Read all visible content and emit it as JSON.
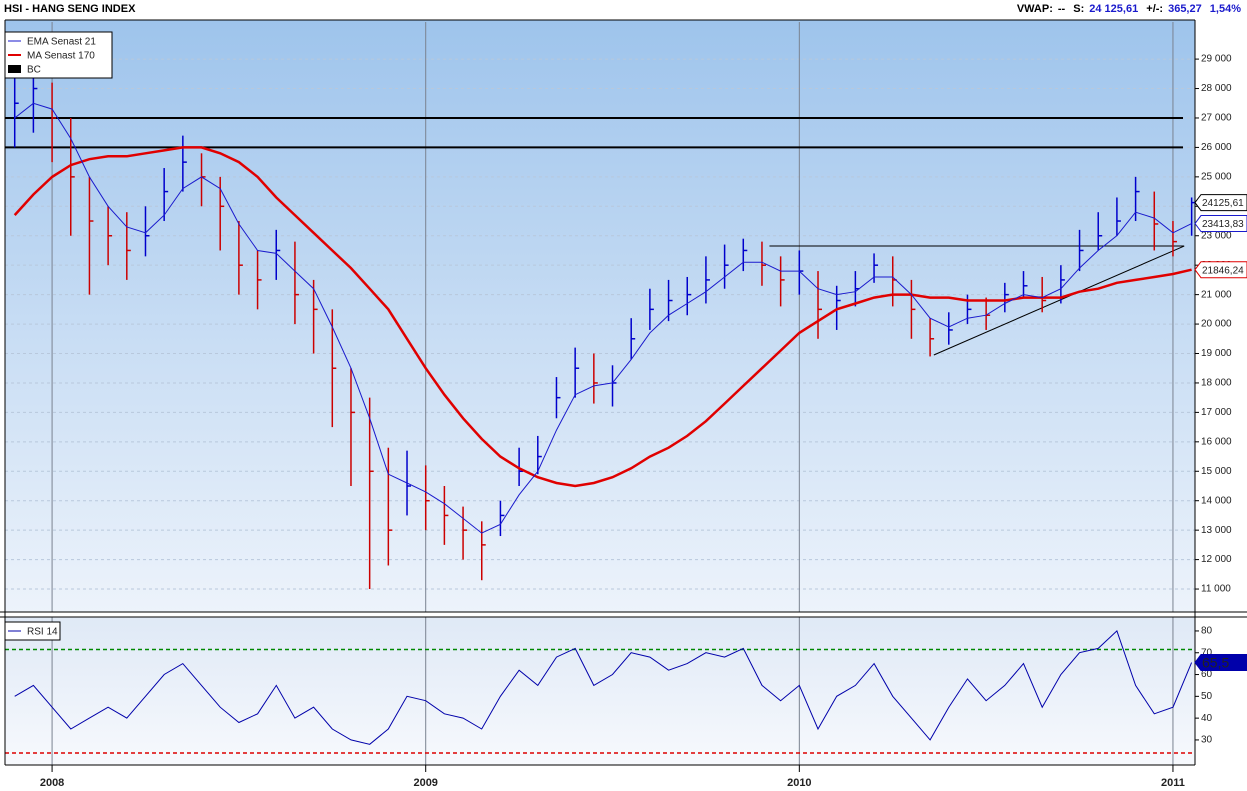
{
  "header": {
    "title": "HSI - HANG SENG INDEX",
    "vwap_label": "VWAP:",
    "vwap": "--",
    "s_label": "S:",
    "s": "24 125,61",
    "change_label": "+/-:",
    "change": "365,27",
    "change_pct": "1,54%"
  },
  "chart_data": [
    {
      "type": "ohlc",
      "x": [
        2007.9,
        2007.95,
        2008.0,
        2008.05,
        2008.1,
        2008.15,
        2008.2,
        2008.25,
        2008.3,
        2008.35,
        2008.4,
        2008.45,
        2008.5,
        2008.55,
        2008.6,
        2008.65,
        2008.7,
        2008.75,
        2008.8,
        2008.85,
        2008.9,
        2008.95,
        2009.0,
        2009.05,
        2009.1,
        2009.15,
        2009.2,
        2009.25,
        2009.3,
        2009.35,
        2009.4,
        2009.45,
        2009.5,
        2009.55,
        2009.6,
        2009.65,
        2009.7,
        2009.75,
        2009.8,
        2009.85,
        2009.9,
        2009.95,
        2010.0,
        2010.05,
        2010.1,
        2010.15,
        2010.2,
        2010.25,
        2010.3,
        2010.35,
        2010.4,
        2010.45,
        2010.5,
        2010.55,
        2010.6,
        2010.65,
        2010.7,
        2010.75,
        2010.8,
        2010.85,
        2010.9,
        2010.95,
        2011.0,
        2011.05
      ],
      "xlim": [
        2007.874,
        2011.059
      ],
      "xticks": [
        2008,
        2009,
        2010,
        2011
      ],
      "ylim": [
        10220,
        30260
      ],
      "yticks": [
        {
          "value": 11000,
          "label": "11 000"
        },
        {
          "value": 12000,
          "label": "12 000"
        },
        {
          "value": 13000,
          "label": "13 000"
        },
        {
          "value": 14000,
          "label": "14 000"
        },
        {
          "value": 15000,
          "label": "15 000"
        },
        {
          "value": 16000,
          "label": "16 000"
        },
        {
          "value": 17000,
          "label": "17 000"
        },
        {
          "value": 18000,
          "label": "18 000"
        },
        {
          "value": 19000,
          "label": "19 000"
        },
        {
          "value": 20000,
          "label": "20 000"
        },
        {
          "value": 21000,
          "label": "21 000"
        },
        {
          "value": 22000,
          "label": "22 000"
        },
        {
          "value": 23000,
          "label": "23 000"
        },
        {
          "value": 24000,
          "label": "24 000"
        },
        {
          "value": 25000,
          "label": "25 000"
        },
        {
          "value": 26000,
          "label": "26 000"
        },
        {
          "value": 27000,
          "label": "27 000"
        },
        {
          "value": 28000,
          "label": "28 000"
        },
        {
          "value": 29000,
          "label": "29 000"
        }
      ],
      "grid": true,
      "legend": "upper left",
      "up_color": "#0000cc",
      "down_color": "#cc0000",
      "series": [
        {
          "name": "EMA  Senast 21",
          "color": "#1a1acc",
          "values": [
            27000,
            27500,
            27300,
            26300,
            25000,
            24000,
            23300,
            23100,
            23700,
            24600,
            25000,
            24600,
            23400,
            22500,
            22400,
            21800,
            21200,
            19900,
            18500,
            16800,
            14900,
            14600,
            14300,
            13900,
            13400,
            12900,
            13200,
            14200,
            15000,
            16400,
            17600,
            17900,
            18000,
            18800,
            19700,
            20300,
            20700,
            21100,
            21600,
            22100,
            22100,
            21800,
            21800,
            21200,
            21000,
            21100,
            21600,
            21600,
            21000,
            20200,
            19900,
            20200,
            20300,
            20700,
            21000,
            20900,
            21200,
            21900,
            22500,
            23000,
            23800,
            23600,
            23100,
            23413.83
          ],
          "value_labels": [
            null,
            null,
            null,
            null,
            null,
            null,
            null,
            null,
            null,
            null,
            null,
            null,
            null,
            null,
            null,
            null,
            null,
            null,
            null,
            null,
            null,
            null,
            null,
            null,
            null,
            null,
            null,
            null,
            null,
            null,
            null,
            null,
            null,
            null,
            null,
            null,
            null,
            null,
            null,
            null,
            null,
            null,
            null,
            null,
            null,
            null,
            null,
            null,
            null,
            null,
            null,
            null,
            null,
            null,
            null,
            null,
            null,
            null,
            null,
            null,
            null,
            null,
            null,
            "23413,83"
          ]
        },
        {
          "name": "MA  Senast 170",
          "color": "#e00000",
          "values": [
            23700,
            24400,
            25000,
            25400,
            25600,
            25700,
            25700,
            25800,
            25900,
            26000,
            26000,
            25800,
            25500,
            25000,
            24300,
            23700,
            23100,
            22500,
            21900,
            21200,
            20500,
            19500,
            18500,
            17600,
            16800,
            16100,
            15500,
            15100,
            14800,
            14600,
            14500,
            14600,
            14800,
            15100,
            15500,
            15800,
            16200,
            16700,
            17300,
            17900,
            18500,
            19100,
            19700,
            20100,
            20500,
            20700,
            20900,
            21000,
            21000,
            20900,
            20900,
            20800,
            20800,
            20800,
            20900,
            20900,
            20900,
            21100,
            21200,
            21400,
            21500,
            21600,
            21700,
            21846.24
          ],
          "value_labels": [
            null,
            null,
            null,
            null,
            null,
            null,
            null,
            null,
            null,
            null,
            null,
            null,
            null,
            null,
            null,
            null,
            null,
            null,
            null,
            null,
            null,
            null,
            null,
            null,
            null,
            null,
            null,
            null,
            null,
            null,
            null,
            null,
            null,
            null,
            null,
            null,
            null,
            null,
            null,
            null,
            null,
            null,
            null,
            null,
            null,
            null,
            null,
            null,
            null,
            null,
            null,
            null,
            null,
            null,
            null,
            null,
            null,
            null,
            null,
            null,
            null,
            null,
            null,
            "21846,24"
          ]
        },
        {
          "name": "BC",
          "color": "#000000",
          "values": [
            27500,
            28000,
            27000,
            25000,
            23500,
            23000,
            22500,
            23000,
            24500,
            25500,
            25000,
            24000,
            22000,
            21500,
            22500,
            21000,
            20500,
            18500,
            17000,
            15000,
            13000,
            14500,
            14000,
            13500,
            13000,
            12500,
            13500,
            15000,
            15500,
            17500,
            18500,
            18000,
            18000,
            19500,
            20500,
            20800,
            21000,
            21500,
            22000,
            22500,
            22000,
            21500,
            21800,
            20500,
            20800,
            21200,
            22000,
            21500,
            20500,
            19500,
            19800,
            20500,
            20300,
            21000,
            21300,
            20800,
            21500,
            22500,
            23000,
            23500,
            24500,
            23400,
            22800,
            24125.61
          ],
          "high": [
            28500,
            28700,
            28200,
            27000,
            25000,
            24000,
            23800,
            24000,
            25300,
            26400,
            25800,
            25000,
            23500,
            22500,
            23200,
            22800,
            21500,
            20500,
            18500,
            17500,
            15800,
            15700,
            15200,
            14500,
            13800,
            13300,
            14000,
            15800,
            16200,
            18200,
            19200,
            19000,
            18600,
            20200,
            21200,
            21500,
            21600,
            22300,
            22700,
            22900,
            22800,
            22300,
            22500,
            21800,
            21300,
            21800,
            22400,
            22300,
            21500,
            20200,
            20400,
            21000,
            20900,
            21400,
            21800,
            21600,
            22000,
            23200,
            23800,
            24300,
            25000,
            24500,
            23500,
            24300
          ],
          "low": [
            26000,
            26500,
            25500,
            23000,
            21000,
            22000,
            21500,
            22300,
            23500,
            24500,
            24000,
            22500,
            21000,
            20500,
            21500,
            20000,
            19000,
            16500,
            14500,
            11000,
            11800,
            13500,
            13000,
            12500,
            12000,
            11300,
            12800,
            14500,
            14900,
            16800,
            17500,
            17300,
            17200,
            18800,
            19800,
            20100,
            20300,
            20700,
            21200,
            21800,
            21300,
            20600,
            21000,
            19500,
            19800,
            20600,
            21400,
            20600,
            19500,
            18900,
            19300,
            20000,
            19800,
            20400,
            20900,
            20400,
            20700,
            21800,
            22500,
            23000,
            23500,
            22500,
            22300,
            23000
          ],
          "value_labels": [
            null,
            null,
            null,
            null,
            null,
            null,
            null,
            null,
            null,
            null,
            null,
            null,
            null,
            null,
            null,
            null,
            null,
            null,
            null,
            null,
            null,
            null,
            null,
            null,
            null,
            null,
            null,
            null,
            null,
            null,
            null,
            null,
            null,
            null,
            null,
            null,
            null,
            null,
            null,
            null,
            null,
            null,
            null,
            null,
            null,
            null,
            null,
            null,
            null,
            null,
            null,
            null,
            null,
            null,
            null,
            null,
            null,
            null,
            null,
            null,
            null,
            null,
            null,
            "24125,61"
          ]
        }
      ],
      "hlines": [
        27000,
        26000
      ],
      "lines": [
        {
          "x": [
            2009.92,
            2011.03
          ],
          "y": [
            22650,
            22650
          ]
        },
        {
          "x": [
            2010.36,
            2011.03
          ],
          "y": [
            18950,
            22650
          ]
        }
      ]
    },
    {
      "type": "line",
      "x": [
        2007.9,
        2007.95,
        2008.0,
        2008.05,
        2008.1,
        2008.15,
        2008.2,
        2008.25,
        2008.3,
        2008.35,
        2008.4,
        2008.45,
        2008.5,
        2008.55,
        2008.6,
        2008.65,
        2008.7,
        2008.75,
        2008.8,
        2008.85,
        2008.9,
        2008.95,
        2009.0,
        2009.05,
        2009.1,
        2009.15,
        2009.2,
        2009.25,
        2009.3,
        2009.35,
        2009.4,
        2009.45,
        2009.5,
        2009.55,
        2009.6,
        2009.65,
        2009.7,
        2009.75,
        2009.8,
        2009.85,
        2009.9,
        2009.95,
        2010.0,
        2010.05,
        2010.1,
        2010.15,
        2010.2,
        2010.25,
        2010.3,
        2010.35,
        2010.4,
        2010.45,
        2010.5,
        2010.55,
        2010.6,
        2010.65,
        2010.7,
        2010.75,
        2010.8,
        2010.85,
        2010.9,
        2010.95,
        2011.0,
        2011.05
      ],
      "xlim": [
        2007.874,
        2011.059
      ],
      "xticks": [
        2008,
        2009,
        2010,
        2011
      ],
      "ylim": [
        18.5,
        86.4
      ],
      "yticks": [
        30,
        40,
        50,
        60,
        70,
        80
      ],
      "legend": "upper left",
      "series": [
        {
          "name": "RSI  14",
          "color": "#0000aa",
          "values": [
            50,
            55,
            45,
            35,
            40,
            45,
            40,
            50,
            60,
            65,
            55,
            45,
            38,
            42,
            55,
            40,
            45,
            35,
            30,
            28,
            35,
            50,
            48,
            42,
            40,
            35,
            50,
            62,
            55,
            68,
            72,
            55,
            60,
            70,
            68,
            62,
            65,
            70,
            68,
            72,
            55,
            48,
            55,
            35,
            50,
            55,
            65,
            50,
            40,
            30,
            45,
            58,
            48,
            55,
            65,
            45,
            60,
            70,
            72,
            80,
            55,
            42,
            45,
            65.5
          ],
          "value_labels": [
            null,
            null,
            null,
            null,
            null,
            null,
            null,
            null,
            null,
            null,
            null,
            null,
            null,
            null,
            null,
            null,
            null,
            null,
            null,
            null,
            null,
            null,
            null,
            null,
            null,
            null,
            null,
            null,
            null,
            null,
            null,
            null,
            null,
            null,
            null,
            null,
            null,
            null,
            null,
            null,
            null,
            null,
            null,
            null,
            null,
            null,
            null,
            null,
            null,
            null,
            null,
            null,
            null,
            null,
            null,
            null,
            null,
            null,
            null,
            null,
            null,
            null,
            null,
            "65,5"
          ]
        }
      ],
      "levels": [
        {
          "value": 71.5,
          "color": "#008800"
        },
        {
          "value": 24,
          "color": "#dd0000"
        }
      ]
    }
  ]
}
